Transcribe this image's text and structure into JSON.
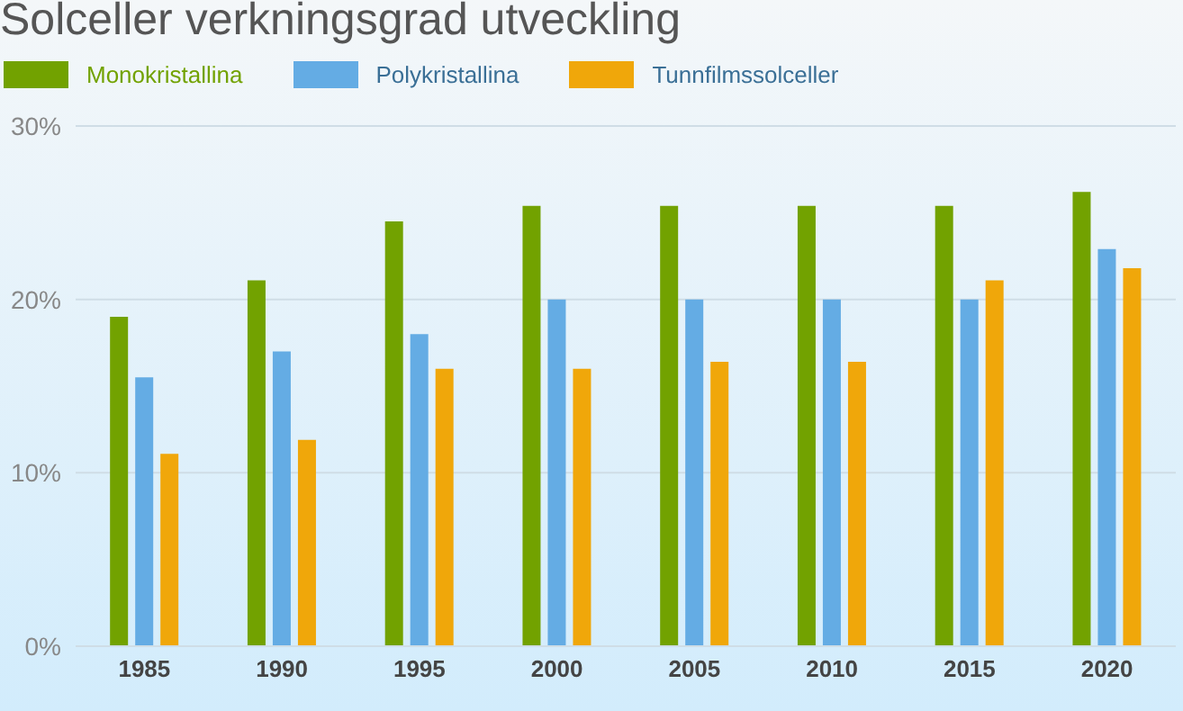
{
  "chart_data": {
    "type": "bar",
    "title": "Solceller verkningsgrad utveckling",
    "categories": [
      "1985",
      "1990",
      "1995",
      "2000",
      "2005",
      "2010",
      "2015",
      "2020"
    ],
    "series": [
      {
        "name": "Monokristallina",
        "color": "#72a200",
        "values": [
          19.0,
          21.1,
          24.5,
          25.4,
          25.4,
          25.4,
          25.4,
          26.2
        ]
      },
      {
        "name": "Polykristallina",
        "color": "#64ace4",
        "values": [
          15.5,
          17.0,
          18.0,
          20.0,
          20.0,
          20.0,
          20.0,
          22.9
        ]
      },
      {
        "name": "Tunnfilmssolceller",
        "color": "#f0a70a",
        "values": [
          11.1,
          11.9,
          16.0,
          16.0,
          16.4,
          16.4,
          21.1,
          21.8
        ]
      }
    ],
    "ylim": [
      0,
      30
    ],
    "yticks": [
      {
        "value": 0,
        "label": "0%"
      },
      {
        "value": 10,
        "label": "10%"
      },
      {
        "value": 20,
        "label": "20%"
      },
      {
        "value": 30,
        "label": "30%"
      }
    ],
    "grid": "y",
    "legend": "top left"
  }
}
